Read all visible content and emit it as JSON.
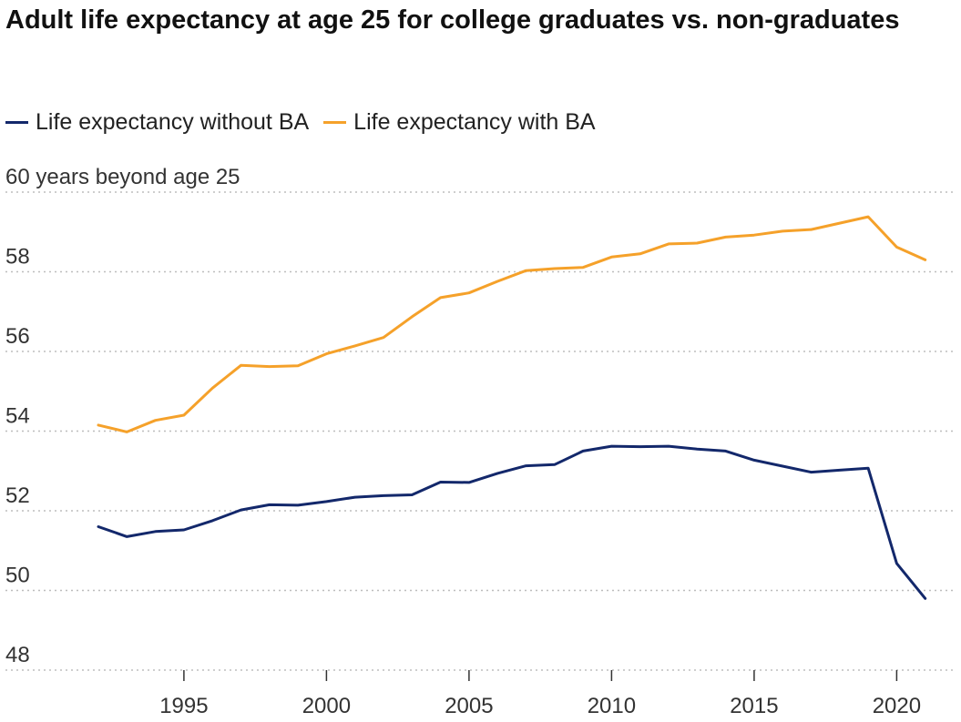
{
  "chart_data": {
    "type": "line",
    "title": "Adult life expectancy at age 25 for college graduates vs. non-graduates",
    "ylabel": "60 years beyond age 25",
    "xlabel": "",
    "ylim": [
      48,
      60
    ],
    "xlim": [
      1990.6,
      2021.7
    ],
    "yticks": [
      "48",
      "50",
      "52",
      "54",
      "56",
      "58"
    ],
    "xticks": [
      "1995",
      "2000",
      "2005",
      "2010",
      "2015",
      "2020"
    ],
    "grid": "horizontal dotted",
    "legend_position": "top",
    "x": [
      1992,
      1993,
      1994,
      1995,
      1996,
      1997,
      1998,
      1999,
      2000,
      2001,
      2002,
      2003,
      2004,
      2005,
      2006,
      2007,
      2008,
      2009,
      2010,
      2011,
      2012,
      2013,
      2014,
      2015,
      2016,
      2017,
      2018,
      2019,
      2020,
      2021
    ],
    "series": [
      {
        "name": "Life expectancy without BA",
        "color": "#13286b",
        "values": [
          51.6,
          51.35,
          51.48,
          51.52,
          51.75,
          52.02,
          52.15,
          52.14,
          52.23,
          52.34,
          52.38,
          52.4,
          52.72,
          52.71,
          52.94,
          53.13,
          53.16,
          53.5,
          53.62,
          53.61,
          53.62,
          53.55,
          53.5,
          53.27,
          53.12,
          52.97,
          53.02,
          53.07,
          50.68,
          49.8
        ]
      },
      {
        "name": "Life expectancy with BA",
        "color": "#f5a12a",
        "values": [
          54.15,
          53.98,
          54.27,
          54.4,
          55.08,
          55.65,
          55.62,
          55.64,
          55.94,
          56.14,
          56.35,
          56.87,
          57.35,
          57.47,
          57.76,
          58.03,
          58.08,
          58.11,
          58.37,
          58.45,
          58.7,
          58.72,
          58.87,
          58.92,
          59.02,
          59.06,
          59.22,
          59.38,
          58.62,
          58.3
        ]
      }
    ]
  }
}
